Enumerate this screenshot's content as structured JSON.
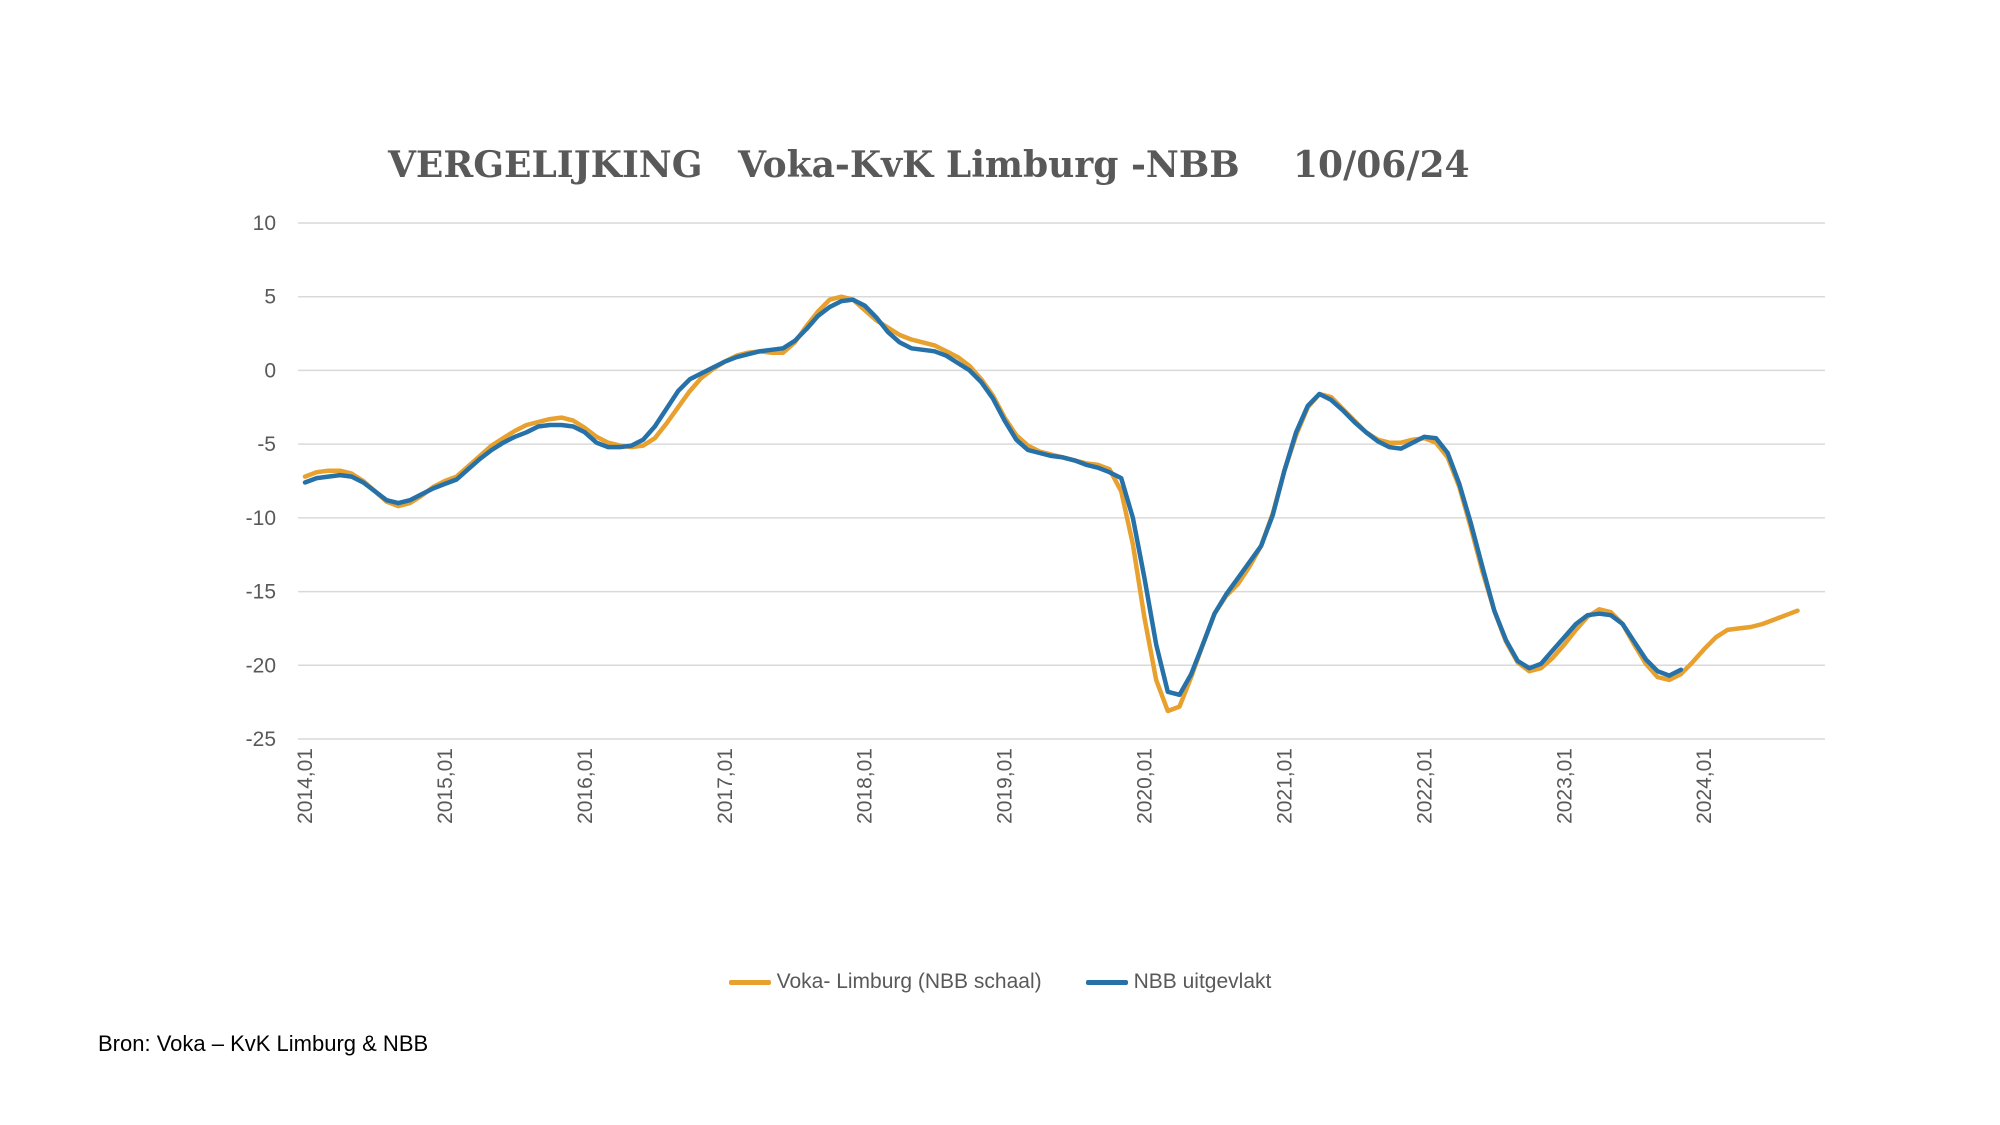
{
  "title_parts": [
    "VERGELIJKING",
    "Voka-KvK Limburg -NBB",
    "10/06/24"
  ],
  "source": "Bron: Voka – KvK Limburg & NBB",
  "colors": {
    "voka": "#E8A02E",
    "nbb": "#2672A8",
    "grid": "#D9D9D9",
    "text": "#595959"
  },
  "chart_data": {
    "type": "line",
    "title": "VERGELIJKING Voka-KvK Limburg -NBB 10/06/24",
    "xlabel": "",
    "ylabel": "",
    "ylim": [
      -25,
      10
    ],
    "yticks": [
      10,
      5,
      0,
      -5,
      -10,
      -15,
      -20,
      -25
    ],
    "x_tick_labels": [
      "2014,01",
      "2015,01",
      "2016,01",
      "2017,01",
      "2018,01",
      "2019,01",
      "2020,01",
      "2021,01",
      "2022,01",
      "2023,01",
      "2024,01"
    ],
    "x_unit": "month index from 2014,01 (0 = 2014,01)",
    "grid": true,
    "legend": "bottom",
    "series": [
      {
        "name": "Voka- Limburg (NBB schaal)",
        "color": "#E8A02E",
        "values": [
          -7.2,
          -6.9,
          -6.8,
          -6.8,
          -7.0,
          -7.5,
          -8.2,
          -8.9,
          -9.2,
          -9.0,
          -8.5,
          -7.9,
          -7.5,
          -7.2,
          -6.5,
          -5.8,
          -5.1,
          -4.6,
          -4.1,
          -3.7,
          -3.5,
          -3.3,
          -3.2,
          -3.4,
          -3.9,
          -4.5,
          -4.9,
          -5.1,
          -5.2,
          -5.1,
          -4.6,
          -3.6,
          -2.5,
          -1.4,
          -0.5,
          0.1,
          0.6,
          1.0,
          1.2,
          1.3,
          1.2,
          1.2,
          1.9,
          3.0,
          4.0,
          4.8,
          5.0,
          4.8,
          4.1,
          3.4,
          2.9,
          2.4,
          2.1,
          1.9,
          1.7,
          1.3,
          0.9,
          0.3,
          -0.6,
          -1.7,
          -3.2,
          -4.4,
          -5.1,
          -5.5,
          -5.7,
          -5.9,
          -6.1,
          -6.3,
          -6.4,
          -6.7,
          -8.2,
          -11.8,
          -16.8,
          -21.0,
          -23.1,
          -22.8,
          -20.8,
          -18.6,
          -16.5,
          -15.3,
          -14.5,
          -13.3,
          -11.9,
          -9.7,
          -6.8,
          -4.4,
          -2.5,
          -1.6,
          -1.8,
          -2.6,
          -3.4,
          -4.2,
          -4.7,
          -4.9,
          -4.9,
          -4.7,
          -4.6,
          -4.9,
          -5.9,
          -7.9,
          -10.7,
          -13.7,
          -16.3,
          -18.4,
          -19.8,
          -20.4,
          -20.2,
          -19.5,
          -18.6,
          -17.6,
          -16.7,
          -16.2,
          -16.4,
          -17.2,
          -18.6,
          -19.9,
          -20.8,
          -21.0,
          -20.6,
          -19.8,
          -18.9,
          -18.1,
          -17.6,
          -17.5,
          -17.4,
          -17.2,
          -16.9,
          -16.6,
          -16.3
        ]
      },
      {
        "name": "NBB  uitgevlakt",
        "color": "#2672A8",
        "values": [
          -7.6,
          -7.3,
          -7.2,
          -7.1,
          -7.2,
          -7.6,
          -8.2,
          -8.8,
          -9.0,
          -8.8,
          -8.4,
          -8.0,
          -7.7,
          -7.4,
          -6.7,
          -6.0,
          -5.4,
          -4.9,
          -4.5,
          -4.2,
          -3.8,
          -3.7,
          -3.7,
          -3.8,
          -4.2,
          -4.9,
          -5.2,
          -5.2,
          -5.1,
          -4.7,
          -3.8,
          -2.6,
          -1.4,
          -0.6,
          -0.2,
          0.2,
          0.6,
          0.9,
          1.1,
          1.3,
          1.4,
          1.5,
          2.0,
          2.8,
          3.7,
          4.3,
          4.7,
          4.8,
          4.4,
          3.6,
          2.6,
          1.9,
          1.5,
          1.4,
          1.3,
          1.0,
          0.5,
          0.0,
          -0.8,
          -1.9,
          -3.4,
          -4.7,
          -5.4,
          -5.6,
          -5.8,
          -5.9,
          -6.1,
          -6.4,
          -6.6,
          -6.9,
          -7.3,
          -10.0,
          -14.1,
          -18.6,
          -21.8,
          -22.0,
          -20.6,
          -18.6,
          -16.5,
          -15.2,
          -14.1,
          -13.0,
          -11.9,
          -9.8,
          -6.8,
          -4.2,
          -2.4,
          -1.6,
          -2.0,
          -2.7,
          -3.5,
          -4.2,
          -4.8,
          -5.2,
          -5.3,
          -4.9,
          -4.5,
          -4.6,
          -5.6,
          -7.7,
          -10.4,
          -13.4,
          -16.3,
          -18.3,
          -19.7,
          -20.2,
          -19.9,
          -19.0,
          -18.1,
          -17.2,
          -16.6,
          -16.5,
          -16.6,
          -17.2,
          -18.4,
          -19.6,
          -20.4,
          -20.7,
          -20.3
        ]
      }
    ]
  }
}
